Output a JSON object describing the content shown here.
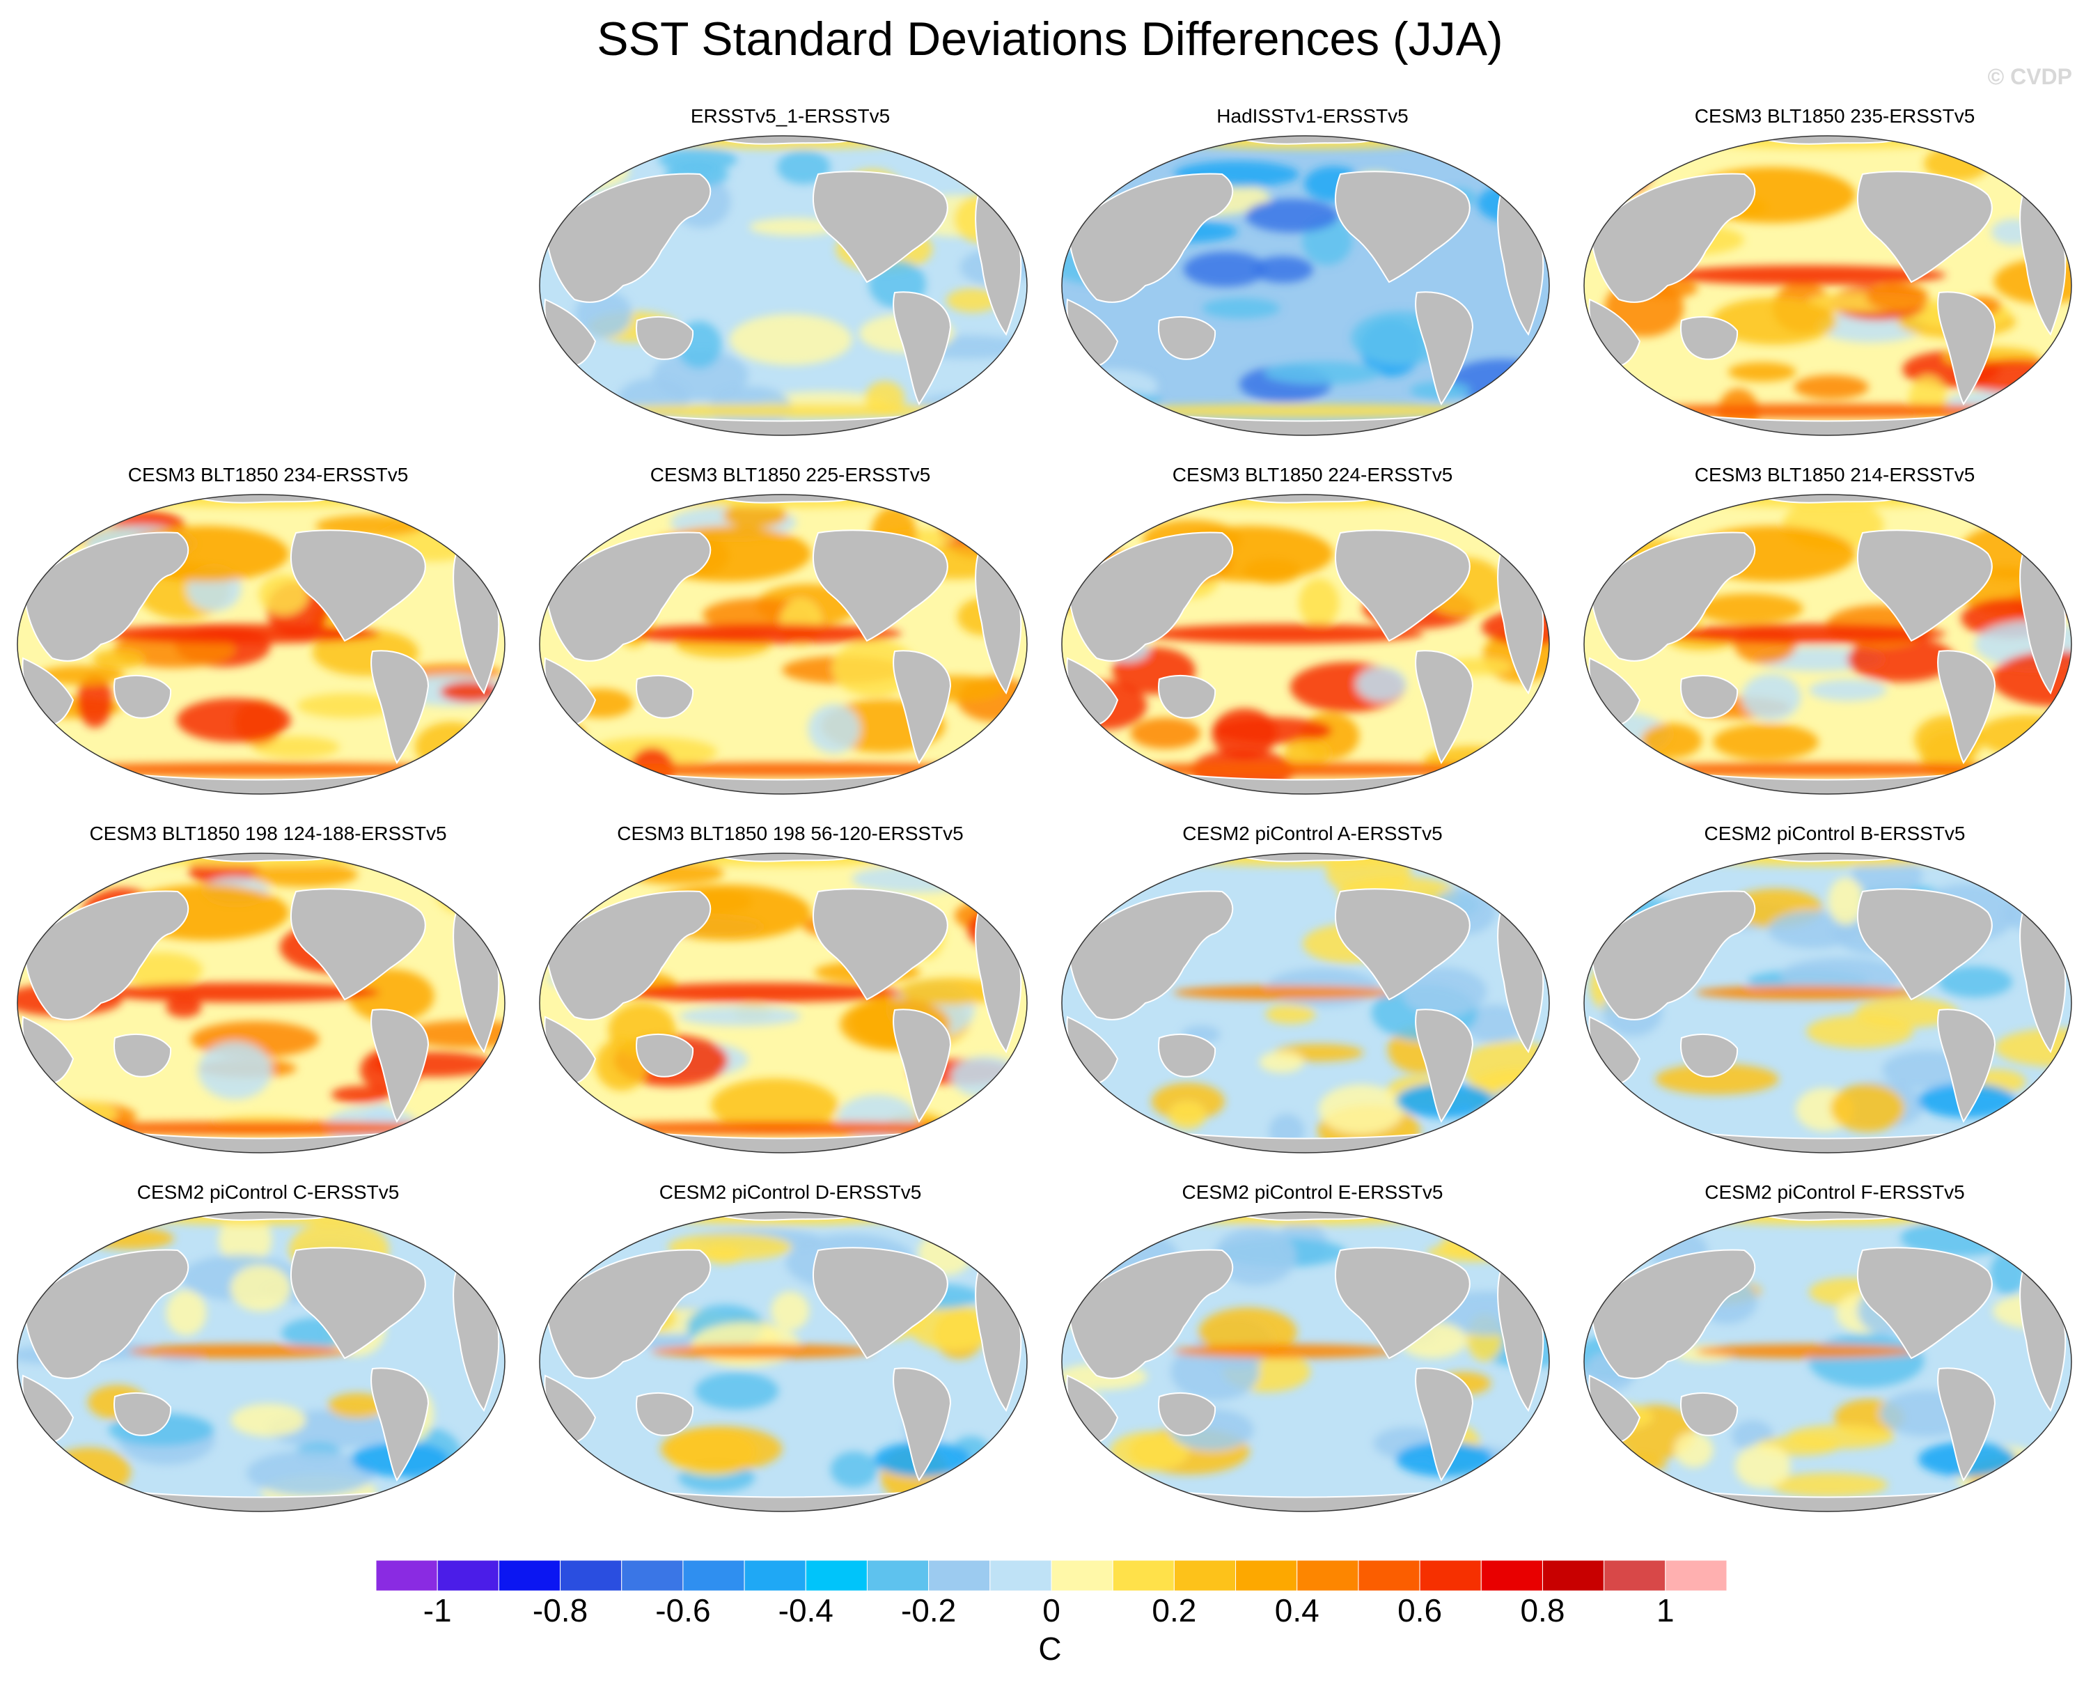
{
  "title": "SST Standard Deviations Differences (JJA)",
  "watermark": "© CVDP",
  "panels": [
    {
      "label": "ERSSTv5_1-ERSSTv5",
      "pattern": "cool",
      "seed": 3
    },
    {
      "label": "HadISSTv1-ERSSTv5",
      "pattern": "cooler",
      "seed": 7
    },
    {
      "label": "CESM3 BLT1850 235-ERSSTv5",
      "pattern": "warm",
      "seed": 11
    },
    {
      "label": "CESM3 BLT1850 234-ERSSTv5",
      "pattern": "warm",
      "seed": 13
    },
    {
      "label": "CESM3 BLT1850 225-ERSSTv5",
      "pattern": "warm",
      "seed": 17
    },
    {
      "label": "CESM3 BLT1850 224-ERSSTv5",
      "pattern": "warm",
      "seed": 19
    },
    {
      "label": "CESM3 BLT1850 214-ERSSTv5",
      "pattern": "warm",
      "seed": 23
    },
    {
      "label": "CESM3 BLT1850 198 124-188-ERSSTv5",
      "pattern": "warm",
      "seed": 29
    },
    {
      "label": "CESM3 BLT1850 198 56-120-ERSSTv5",
      "pattern": "warm",
      "seed": 31
    },
    {
      "label": "CESM2 piControl A-ERSSTv5",
      "pattern": "mixed",
      "seed": 37
    },
    {
      "label": "CESM2 piControl B-ERSSTv5",
      "pattern": "mixed",
      "seed": 41
    },
    {
      "label": "CESM2 piControl C-ERSSTv5",
      "pattern": "mixed",
      "seed": 43
    },
    {
      "label": "CESM2 piControl D-ERSSTv5",
      "pattern": "mixed",
      "seed": 47
    },
    {
      "label": "CESM2 piControl E-ERSSTv5",
      "pattern": "mixed",
      "seed": 53
    },
    {
      "label": "CESM2 piControl F-ERSSTv5",
      "pattern": "mixed",
      "seed": 59
    }
  ],
  "colorbar": {
    "units": "C",
    "tick_labels": [
      "-1",
      "-0.8",
      "-0.6",
      "-0.4",
      "-0.2",
      "0",
      "0.2",
      "0.4",
      "0.6",
      "0.8",
      "1"
    ],
    "tick_values": [
      -1,
      -0.8,
      -0.6,
      -0.4,
      -0.2,
      0,
      0.2,
      0.4,
      0.6,
      0.8,
      1
    ],
    "min": -1.1,
    "max": 1.1,
    "colors": [
      "#8a2be2",
      "#4b1de8",
      "#0b16f2",
      "#2a4ee0",
      "#3a76e6",
      "#2f8ff0",
      "#1fa8f5",
      "#00c4fa",
      "#5ec2ee",
      "#9ccbf0",
      "#bfe2f6",
      "#fff8a8",
      "#ffe14a",
      "#fdc21a",
      "#fda800",
      "#fd8600",
      "#fb5e00",
      "#f63000",
      "#e80000",
      "#c80000",
      "#d84848",
      "#ffb0b0"
    ]
  },
  "colors": {
    "land": "#bdbdbd",
    "coast": "#ffffff",
    "outline": "#333333"
  }
}
